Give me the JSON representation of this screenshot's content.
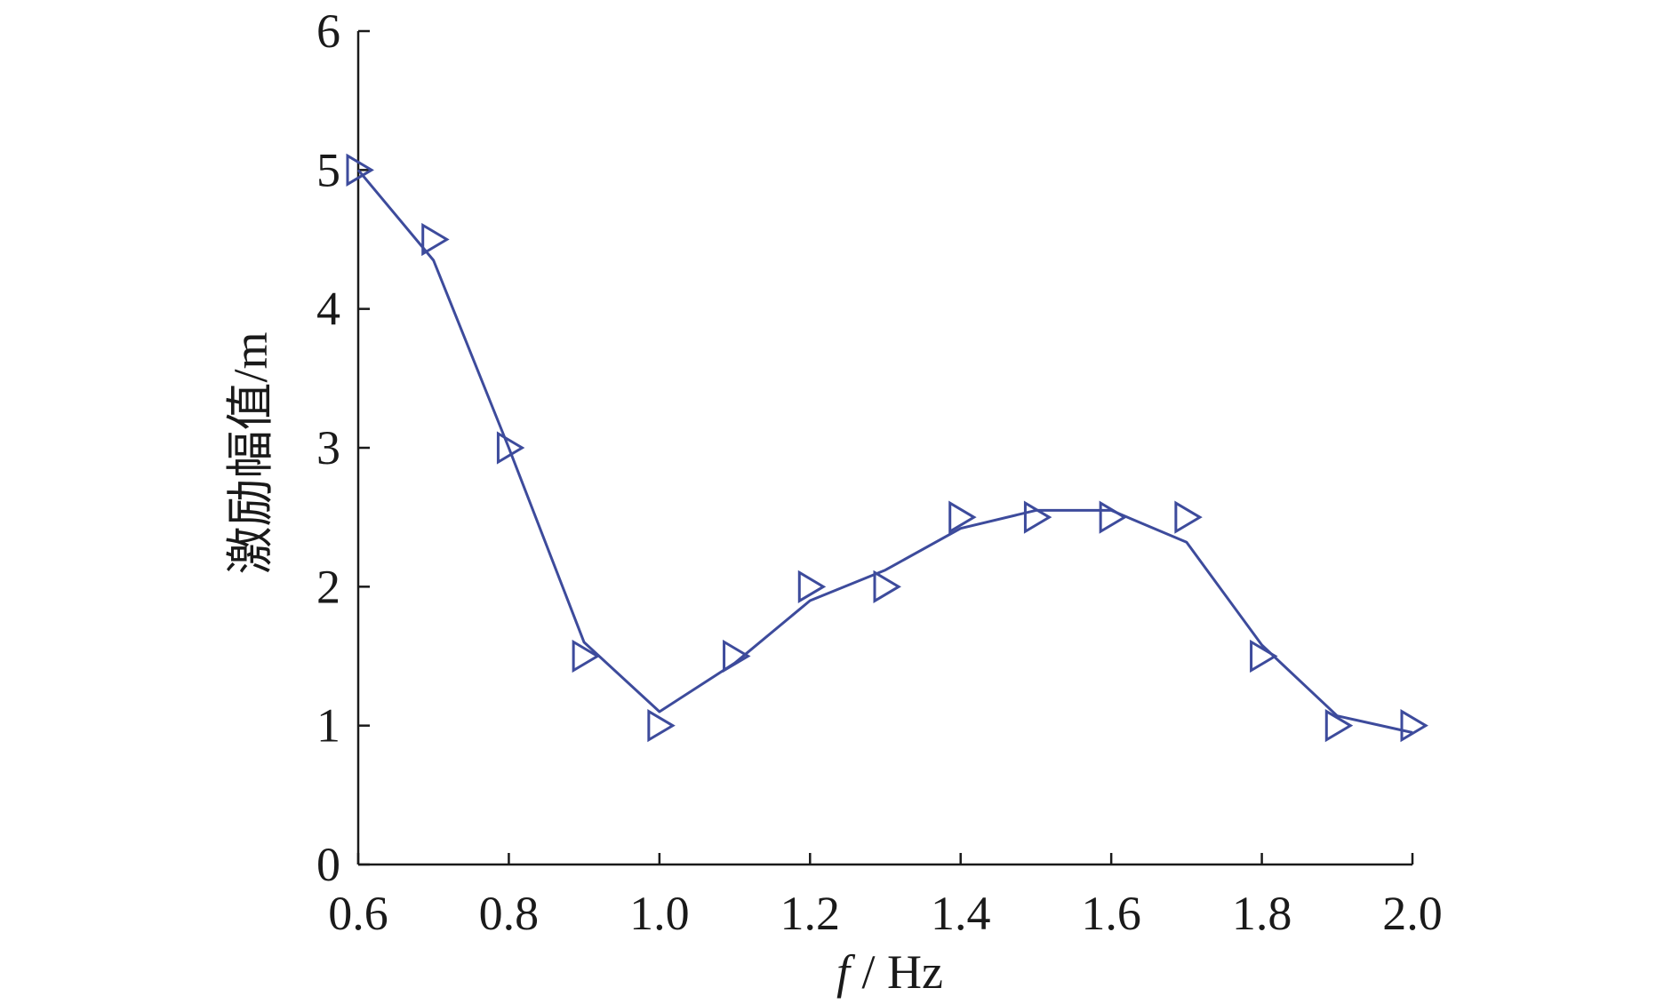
{
  "chart_data": {
    "type": "line",
    "xlabel_italic": "f",
    "xlabel_unit": " / Hz",
    "ylabel": "激励幅值/m",
    "xlim": [
      0.6,
      2.0
    ],
    "ylim": [
      0,
      6
    ],
    "x_ticks": [
      "0.6",
      "0.8",
      "1.0",
      "1.2",
      "1.4",
      "1.6",
      "1.8",
      "2.0"
    ],
    "y_ticks": [
      "0",
      "1",
      "2",
      "3",
      "4",
      "5",
      "6"
    ],
    "grid": false,
    "series_color": "#3d4b9c",
    "line": {
      "x": [
        0.6,
        0.7,
        0.8,
        0.9,
        1.0,
        1.1,
        1.2,
        1.3,
        1.4,
        1.5,
        1.6,
        1.7,
        1.8,
        1.9,
        2.0
      ],
      "y": [
        5.0,
        4.35,
        3.0,
        1.6,
        1.1,
        1.45,
        1.9,
        2.12,
        2.42,
        2.55,
        2.55,
        2.32,
        1.58,
        1.07,
        0.95
      ]
    },
    "markers": {
      "shape": "triangle-right",
      "x": [
        0.6,
        0.7,
        0.8,
        0.9,
        1.0,
        1.1,
        1.2,
        1.3,
        1.4,
        1.5,
        1.6,
        1.7,
        1.8,
        1.9,
        2.0
      ],
      "y": [
        5.0,
        4.5,
        3.0,
        1.5,
        1.0,
        1.5,
        2.0,
        2.0,
        2.5,
        2.5,
        2.5,
        2.5,
        1.5,
        1.0,
        1.0
      ]
    }
  }
}
